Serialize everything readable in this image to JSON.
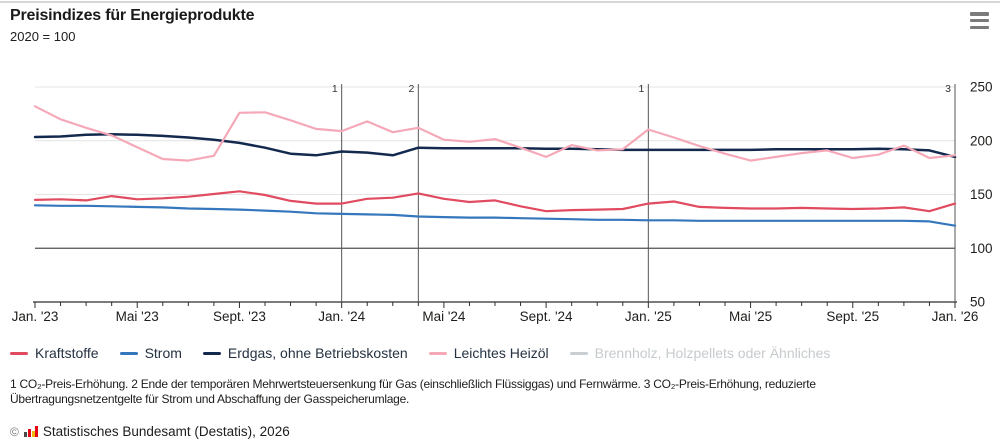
{
  "header": {
    "title": "Preisindizes für Energieprodukte",
    "subtitle": "2020 = 100"
  },
  "menu": {
    "icon": "hamburger-menu-icon"
  },
  "chart_data": {
    "type": "line",
    "title": "Preisindizes für Energieprodukte",
    "subtitle": "2020 = 100",
    "grid": "horizontal",
    "legend_position": "bottom",
    "ylim": [
      50,
      250
    ],
    "y_ticks": [
      "250",
      "200",
      "150",
      "100",
      "50"
    ],
    "y_tick_values": [
      250,
      200,
      150,
      100,
      50
    ],
    "baseline_value": 100,
    "x_tick_labels": [
      "Jan. '23",
      "Mai '23",
      "Sept. '23",
      "Jan. '24",
      "Mai '24",
      "Sept. '24",
      "Jan. '25",
      "Mai '25",
      "Sept. '25",
      "Jan. '26"
    ],
    "x_tick_indices": [
      0,
      4,
      8,
      12,
      16,
      20,
      24,
      28,
      32,
      36
    ],
    "months": [
      "Jan. '23",
      "Feb. '23",
      "März '23",
      "Apr. '23",
      "Mai '23",
      "Juni '23",
      "Juli '23",
      "Aug. '23",
      "Sept. '23",
      "Okt. '23",
      "Nov. '23",
      "Dez. '23",
      "Jan. '24",
      "Feb. '24",
      "März '24",
      "Apr. '24",
      "Mai '24",
      "Juni '24",
      "Juli '24",
      "Aug. '24",
      "Sept. '24",
      "Okt. '24",
      "Nov. '24",
      "Dez. '24",
      "Jan. '25",
      "Feb. '25",
      "März '25",
      "Apr. '25",
      "Mai '25",
      "Juni '25",
      "Juli '25",
      "Aug. '25",
      "Sept. '25",
      "Okt. '25",
      "Nov. '25",
      "Dez. '25",
      "Jan. '26"
    ],
    "series": [
      {
        "name": "Kraftstoffe",
        "color": "#e14b60",
        "width": 2.2,
        "hidden": false,
        "values": [
          145,
          145.5,
          144.5,
          148.5,
          145.5,
          146.5,
          148,
          150.5,
          153,
          149.5,
          144,
          141.5,
          141.5,
          146,
          147,
          151,
          146,
          143,
          144.5,
          139,
          134.5,
          135.5,
          136,
          136.5,
          141.5,
          143.5,
          138.5,
          137.5,
          137,
          137,
          137.5,
          137,
          136.5,
          137,
          138,
          134.5,
          141.5
        ]
      },
      {
        "name": "Strom",
        "color": "#3577bc",
        "width": 2.2,
        "hidden": false,
        "values": [
          140,
          139.5,
          139.5,
          139,
          138.5,
          138,
          137,
          136.5,
          136,
          135,
          134,
          132.5,
          132,
          131.5,
          131,
          129.5,
          129,
          128.5,
          128.5,
          128,
          127.5,
          127,
          126.5,
          126.5,
          126,
          126,
          125.5,
          125.5,
          125.5,
          125.5,
          125.5,
          125.5,
          125.5,
          125.5,
          125.5,
          125,
          121
        ]
      },
      {
        "name": "Erdgas, ohne Betriebskosten",
        "color": "#13294e",
        "width": 2.5,
        "hidden": false,
        "values": [
          203.5,
          204,
          205.5,
          206,
          205.5,
          204.5,
          203,
          201,
          198,
          193.5,
          188,
          186.5,
          190,
          189,
          186.5,
          193.5,
          193,
          193,
          193,
          193,
          192.5,
          192.5,
          192,
          191.5,
          191.5,
          191.5,
          191.5,
          191.5,
          191.5,
          192,
          192,
          192,
          192,
          192.5,
          192,
          191,
          185
        ]
      },
      {
        "name": "Leichtes Heizöl",
        "color": "#f5a9b8",
        "width": 2.2,
        "hidden": false,
        "values": [
          232,
          220,
          212,
          205,
          194,
          183,
          181.5,
          186,
          226,
          226.5,
          219,
          211,
          209,
          218,
          208,
          212,
          201,
          199,
          201.5,
          193.5,
          185,
          196,
          191,
          192,
          210.5,
          203,
          195,
          188,
          181.5,
          185,
          188.5,
          191,
          184,
          187,
          195.5,
          184,
          186.5
        ]
      },
      {
        "name": "Brennholz, Holzpellets oder Ähnliches",
        "color": "#c9ced2",
        "width": 2.2,
        "hidden": true,
        "values": []
      }
    ],
    "annotations": [
      {
        "label": "1",
        "month_index": 12
      },
      {
        "label": "2",
        "month_index": 15
      },
      {
        "label": "1",
        "month_index": 24
      },
      {
        "label": "3",
        "month_index": 36
      }
    ]
  },
  "footnote_lines": [
    "1 CO₂-Preis-Erhöhung. 2 Ende der temporären Mehrwertsteuersenkung für Gas (einschließlich Flüssiggas) und Fernwärme. 3 CO₂-Preis-Erhöhung, reduzierte",
    "Übertragungsnetzentgelte für Strom und Abschaffung der Gasspeicherumlage."
  ],
  "source": {
    "copyright": "©",
    "logo": "destatis-bars-logo",
    "label": "Statistisches Bundesamt (Destatis), 2026"
  }
}
